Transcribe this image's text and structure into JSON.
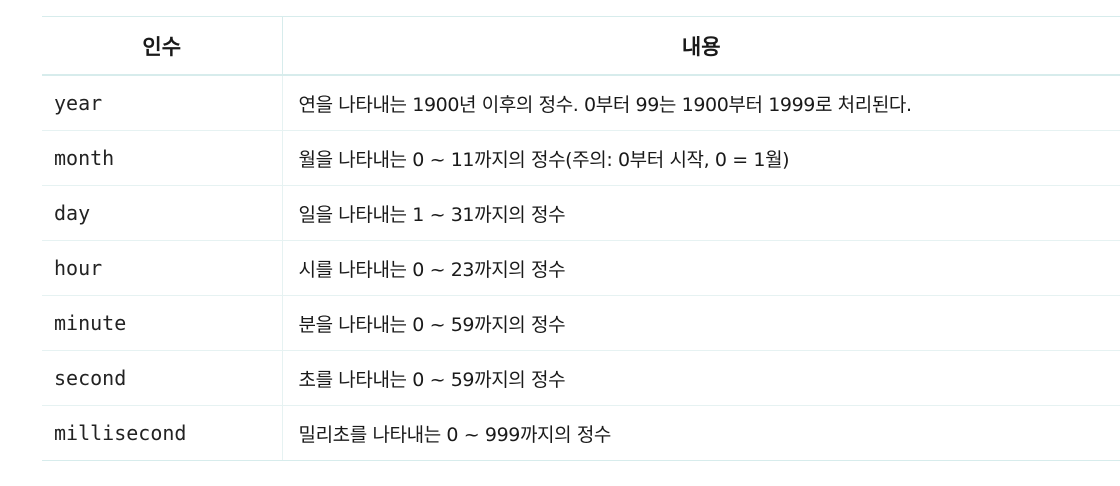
{
  "table": {
    "headers": [
      "인수",
      "내용"
    ],
    "rows": [
      {
        "arg": "year",
        "desc": "연을 나타내는 1900년 이후의 정수. 0부터 99는 1900부터 1999로 처리된다."
      },
      {
        "arg": "month",
        "desc": "월을 나타내는 0 ~ 11까지의 정수(주의: 0부터 시작, 0 = 1월)"
      },
      {
        "arg": "day",
        "desc": "일을 나타내는 1 ~ 31까지의 정수"
      },
      {
        "arg": "hour",
        "desc": "시를 나타내는 0 ~ 23까지의 정수"
      },
      {
        "arg": "minute",
        "desc": "분을 나타내는 0 ~ 59까지의 정수"
      },
      {
        "arg": "second",
        "desc": "초를 나타내는 0 ~ 59까지의 정수"
      },
      {
        "arg": "millisecond",
        "desc": "밀리초를 나타내는 0 ~ 999까지의 정수"
      }
    ]
  }
}
